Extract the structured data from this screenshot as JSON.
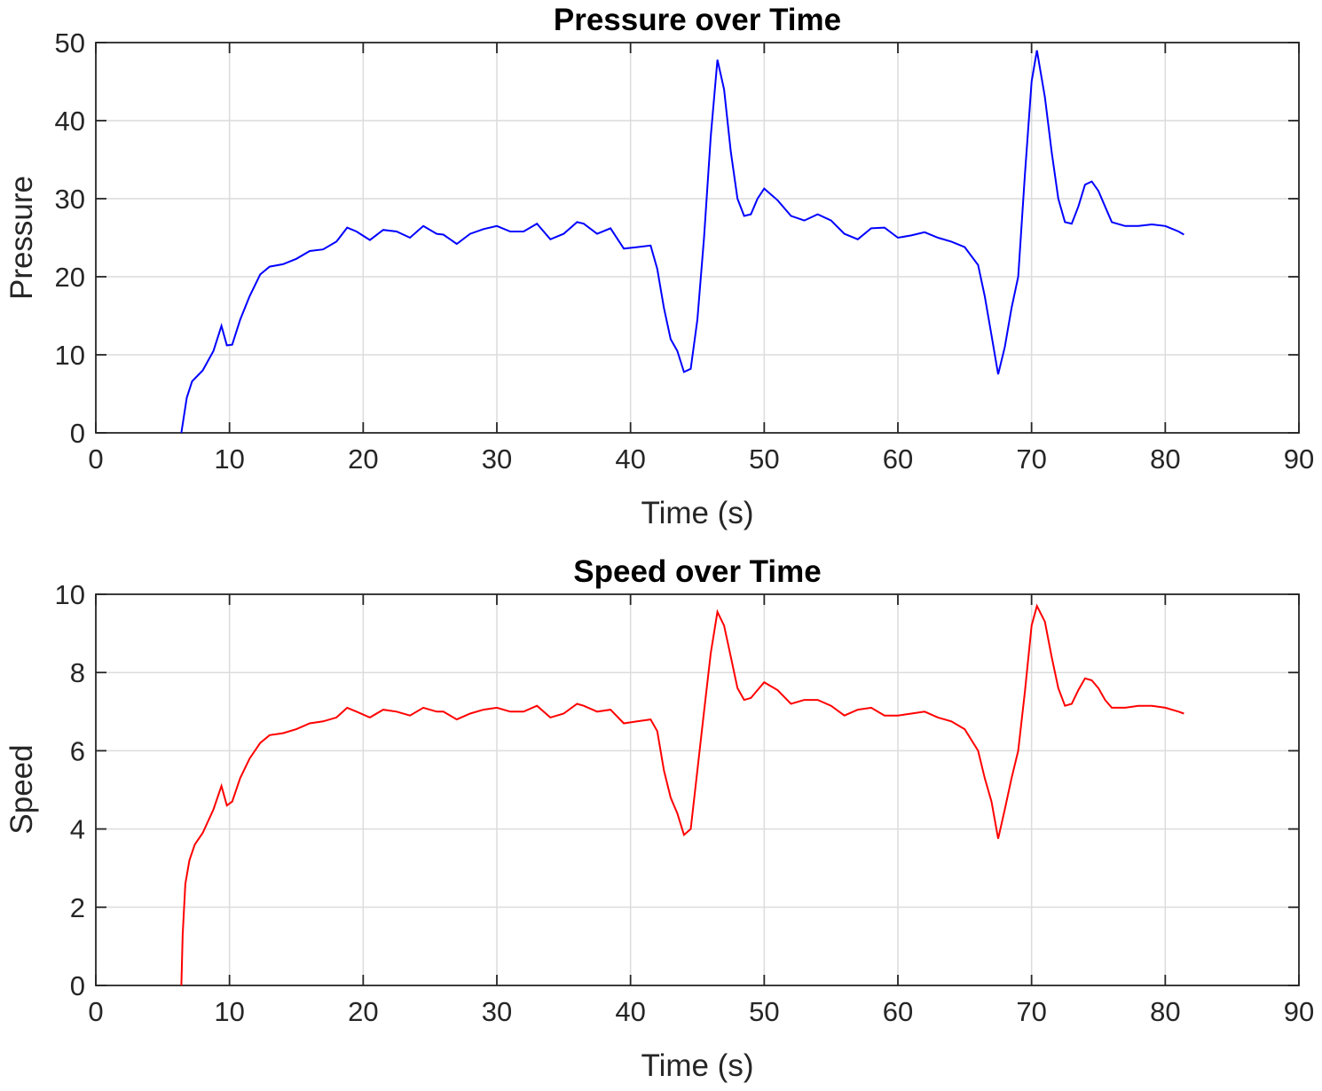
{
  "chart_data": [
    {
      "type": "line",
      "title": "Pressure over Time",
      "xlabel": "Time (s)",
      "ylabel": "Pressure",
      "xlim": [
        0,
        90
      ],
      "ylim": [
        0,
        50
      ],
      "xticks": [
        "0",
        "10",
        "20",
        "30",
        "40",
        "50",
        "60",
        "70",
        "80",
        "90"
      ],
      "yticks": [
        "0",
        "10",
        "20",
        "30",
        "40",
        "50"
      ],
      "grid": true,
      "color": "#0000ff",
      "series": [
        {
          "x": [
            6.4,
            6.8,
            7.2,
            8.0,
            8.8,
            9.4,
            9.8,
            10.2,
            10.8,
            11.5,
            12.3,
            13.0,
            14.0,
            15.0,
            16.0,
            17.0,
            18.0,
            18.8,
            19.5,
            20.5,
            21.5,
            22.5,
            23.5,
            24.5,
            25.5,
            26.0,
            27.0,
            28.0,
            29.0,
            30.0,
            31.0,
            32.0,
            33.0,
            34.0,
            35.0,
            36.0,
            36.5,
            37.5,
            38.5,
            39.5,
            40.5,
            41.5,
            42.0,
            42.5,
            43.0,
            43.5,
            44.0,
            44.5,
            45.0,
            45.5,
            46.0,
            46.5,
            47.0,
            47.5,
            48.0,
            48.5,
            49.0,
            49.5,
            50.0,
            51.0,
            52.0,
            53.0,
            54.0,
            55.0,
            56.0,
            57.0,
            58.0,
            59.0,
            60.0,
            61.0,
            62.0,
            63.0,
            64.0,
            65.0,
            66.0,
            66.5,
            67.0,
            67.5,
            68.0,
            68.5,
            69.0,
            69.5,
            70.0,
            70.4,
            71.0,
            71.5,
            72.0,
            72.5,
            73.0,
            73.5,
            74.0,
            74.5,
            75.0,
            75.5,
            76.0,
            77.0,
            78.0,
            79.0,
            80.0,
            81.0,
            81.4
          ],
          "y": [
            0,
            4.5,
            6.6,
            8.0,
            10.5,
            13.7,
            11.2,
            11.3,
            14.5,
            17.5,
            20.3,
            21.3,
            21.6,
            22.3,
            23.3,
            23.5,
            24.5,
            26.3,
            25.8,
            24.7,
            26.0,
            25.8,
            25.0,
            26.5,
            25.5,
            25.4,
            24.2,
            25.5,
            26.1,
            26.5,
            25.8,
            25.8,
            26.8,
            24.8,
            25.5,
            27.0,
            26.8,
            25.5,
            26.2,
            23.6,
            23.8,
            24.0,
            21.0,
            16.0,
            12.0,
            10.5,
            7.8,
            8.2,
            14.5,
            25.0,
            38.0,
            47.8,
            44.0,
            36.0,
            30.0,
            27.8,
            28.0,
            30.0,
            31.3,
            29.8,
            27.8,
            27.2,
            28.0,
            27.2,
            25.5,
            24.8,
            26.2,
            26.3,
            25.0,
            25.3,
            25.7,
            25.0,
            24.5,
            23.8,
            21.5,
            17.5,
            12.5,
            7.5,
            11.0,
            16.0,
            20.0,
            33.0,
            45.0,
            49.0,
            43.0,
            36.0,
            30.0,
            27.0,
            26.8,
            29.0,
            31.8,
            32.2,
            31.0,
            29.0,
            27.0,
            26.5,
            26.5,
            26.7,
            26.5,
            25.8,
            25.4
          ]
        }
      ]
    },
    {
      "type": "line",
      "title": "Speed over Time",
      "xlabel": "Time (s)",
      "ylabel": "Speed",
      "xlim": [
        0,
        90
      ],
      "ylim": [
        0,
        10
      ],
      "xticks": [
        "0",
        "10",
        "20",
        "30",
        "40",
        "50",
        "60",
        "70",
        "80",
        "90"
      ],
      "yticks": [
        "0",
        "2",
        "4",
        "6",
        "8",
        "10"
      ],
      "grid": true,
      "color": "#ff0000",
      "series": [
        {
          "x": [
            6.4,
            6.5,
            6.7,
            7.0,
            7.4,
            8.0,
            8.8,
            9.4,
            9.8,
            10.2,
            10.8,
            11.5,
            12.3,
            13.0,
            14.0,
            15.0,
            16.0,
            17.0,
            18.0,
            18.8,
            19.5,
            20.5,
            21.5,
            22.5,
            23.5,
            24.5,
            25.5,
            26.0,
            27.0,
            28.0,
            29.0,
            30.0,
            31.0,
            32.0,
            33.0,
            34.0,
            35.0,
            36.0,
            36.5,
            37.5,
            38.5,
            39.5,
            40.5,
            41.5,
            42.0,
            42.5,
            43.0,
            43.5,
            44.0,
            44.5,
            45.0,
            45.5,
            46.0,
            46.5,
            47.0,
            47.5,
            48.0,
            48.5,
            49.0,
            49.5,
            50.0,
            51.0,
            52.0,
            53.0,
            54.0,
            55.0,
            56.0,
            57.0,
            58.0,
            59.0,
            60.0,
            61.0,
            62.0,
            63.0,
            64.0,
            65.0,
            66.0,
            66.5,
            67.0,
            67.5,
            68.0,
            68.5,
            69.0,
            69.5,
            70.0,
            70.4,
            71.0,
            71.5,
            72.0,
            72.5,
            73.0,
            73.5,
            74.0,
            74.5,
            75.0,
            75.5,
            76.0,
            77.0,
            78.0,
            79.0,
            80.0,
            81.0,
            81.4
          ],
          "y": [
            0,
            1.3,
            2.6,
            3.2,
            3.6,
            3.9,
            4.5,
            5.1,
            4.6,
            4.7,
            5.3,
            5.8,
            6.2,
            6.4,
            6.45,
            6.55,
            6.7,
            6.75,
            6.85,
            7.1,
            7.0,
            6.85,
            7.05,
            7.0,
            6.9,
            7.1,
            7.0,
            7.0,
            6.8,
            6.95,
            7.05,
            7.1,
            7.0,
            7.0,
            7.15,
            6.85,
            6.95,
            7.2,
            7.15,
            7.0,
            7.05,
            6.7,
            6.75,
            6.8,
            6.5,
            5.5,
            4.8,
            4.4,
            3.85,
            4.0,
            5.5,
            7.0,
            8.5,
            9.55,
            9.2,
            8.4,
            7.6,
            7.3,
            7.35,
            7.55,
            7.75,
            7.55,
            7.2,
            7.3,
            7.3,
            7.15,
            6.9,
            7.05,
            7.1,
            6.9,
            6.9,
            6.95,
            7.0,
            6.85,
            6.75,
            6.55,
            6.0,
            5.3,
            4.7,
            3.75,
            4.5,
            5.3,
            6.0,
            7.5,
            9.2,
            9.7,
            9.3,
            8.4,
            7.6,
            7.15,
            7.2,
            7.55,
            7.85,
            7.8,
            7.6,
            7.3,
            7.1,
            7.1,
            7.15,
            7.15,
            7.1,
            7.0,
            6.95
          ]
        }
      ]
    }
  ]
}
